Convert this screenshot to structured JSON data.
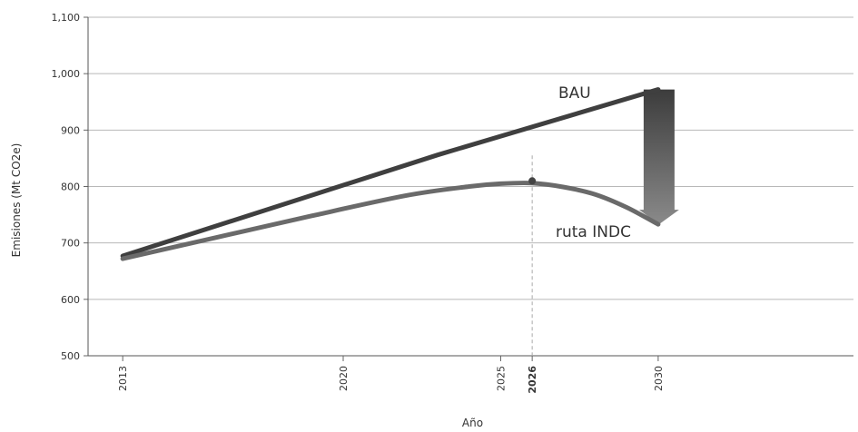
{
  "chart_data": {
    "type": "line",
    "xlabel": "Año",
    "ylabel": "Emisiones (Mt CO2e)",
    "ylim": [
      500,
      1100
    ],
    "xlim": [
      2011.9,
      2036.2
    ],
    "yticks": [
      500,
      600,
      700,
      800,
      900,
      1000,
      1100
    ],
    "ytick_labels": [
      "500",
      "600",
      "700",
      "800",
      "900",
      "1,000",
      "1,100"
    ],
    "xticks": [
      2013,
      2020,
      2025,
      2026,
      2030
    ],
    "xtick_labels": [
      "2013",
      "2020",
      "2025",
      "2026",
      "2030"
    ],
    "highlighted_xtick": 2026,
    "grid": "horizontal",
    "series": [
      {
        "name": "BAU",
        "color": "#3f3f3f",
        "x": [
          2013,
          2023,
          2030
        ],
        "y": [
          677,
          856,
          972
        ]
      },
      {
        "name": "ruta INDC",
        "color": "#6a6a6a",
        "x": [
          2013,
          2016,
          2019,
          2022,
          2024,
          2025,
          2026,
          2027,
          2028,
          2029,
          2030
        ],
        "y": [
          672,
          710,
          748,
          784,
          800,
          805,
          806,
          799,
          786,
          763,
          733
        ]
      }
    ],
    "annotations": [
      {
        "type": "peak-marker",
        "x": 2026,
        "y": 810
      },
      {
        "type": "reduction-arrow",
        "x": 2030,
        "from": 972,
        "to": 733
      }
    ]
  }
}
